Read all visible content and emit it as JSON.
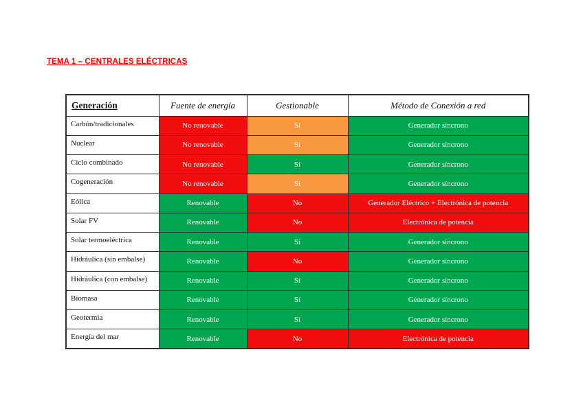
{
  "page": {
    "title": "TEMA 1 – CENTRALES ELÉCTRICAS",
    "title_color": "#ff0000"
  },
  "colors": {
    "red": "#f00e0e",
    "green": "#00a64f",
    "orange": "#f8983f",
    "border": "#2e2e2e",
    "cell_text": "#ffffff"
  },
  "table": {
    "headers": [
      "Generación",
      "Fuente de energía",
      "Gestionable",
      "Método de Conexión a red"
    ],
    "rows": [
      {
        "label": "Carbón/tradicionales",
        "cells": [
          {
            "text": "No renovable",
            "color": "red"
          },
          {
            "text": "Sí",
            "color": "orange"
          },
          {
            "text": "Generador síncrono",
            "color": "green"
          }
        ]
      },
      {
        "label": "Nuclear",
        "cells": [
          {
            "text": "No renovable",
            "color": "red"
          },
          {
            "text": "Sí",
            "color": "orange"
          },
          {
            "text": "Generador síncrono",
            "color": "green"
          }
        ]
      },
      {
        "label": "Ciclo combinado",
        "cells": [
          {
            "text": "No renovable",
            "color": "red"
          },
          {
            "text": "Sí",
            "color": "green"
          },
          {
            "text": "Generador síncrono",
            "color": "green"
          }
        ]
      },
      {
        "label": "Cogeneración",
        "cells": [
          {
            "text": "No renovable",
            "color": "red"
          },
          {
            "text": "Sí",
            "color": "orange"
          },
          {
            "text": "Generador síncrono",
            "color": "green"
          }
        ]
      },
      {
        "label": "Eólica",
        "cells": [
          {
            "text": "Renovable",
            "color": "green"
          },
          {
            "text": "No",
            "color": "red"
          },
          {
            "text": "Generador Eléctrico + Electrónica de potencia",
            "color": "red"
          }
        ]
      },
      {
        "label": "Solar FV",
        "cells": [
          {
            "text": "Renovable",
            "color": "green"
          },
          {
            "text": "No",
            "color": "red"
          },
          {
            "text": "Electrónica de potencia",
            "color": "red"
          }
        ]
      },
      {
        "label": "Solar termoeléctrica",
        "cells": [
          {
            "text": "Renovable",
            "color": "green"
          },
          {
            "text": "Sí",
            "color": "green"
          },
          {
            "text": "Generador síncrono",
            "color": "green"
          }
        ]
      },
      {
        "label": "Hidráulica (sin embalse)",
        "cells": [
          {
            "text": "Renovable",
            "color": "green"
          },
          {
            "text": "No",
            "color": "red"
          },
          {
            "text": "Generador síncrono",
            "color": "green"
          }
        ]
      },
      {
        "label": "Hidráulica (con embalse)",
        "cells": [
          {
            "text": "Renovable",
            "color": "green"
          },
          {
            "text": "Sí",
            "color": "green"
          },
          {
            "text": "Generador síncrono",
            "color": "green"
          }
        ]
      },
      {
        "label": "Biomasa",
        "cells": [
          {
            "text": "Renovable",
            "color": "green"
          },
          {
            "text": "Sí",
            "color": "green"
          },
          {
            "text": "Generador síncrono",
            "color": "green"
          }
        ]
      },
      {
        "label": "Geotermia",
        "cells": [
          {
            "text": "Renovable",
            "color": "green"
          },
          {
            "text": "Sí",
            "color": "green"
          },
          {
            "text": "Generador síncrono",
            "color": "green"
          }
        ]
      },
      {
        "label": "Energía del mar",
        "cells": [
          {
            "text": "Renovable",
            "color": "green"
          },
          {
            "text": "No",
            "color": "red"
          },
          {
            "text": "Electrónica de potencia",
            "color": "red"
          }
        ]
      }
    ]
  }
}
